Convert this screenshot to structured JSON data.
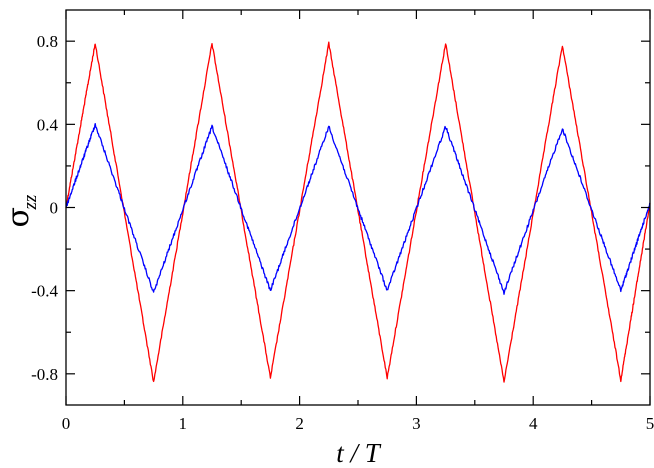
{
  "chart_data": {
    "type": "line",
    "xlabel": "t / T",
    "ylabel": {
      "symbol": "σ",
      "subscript": "zz"
    },
    "xlim": [
      0,
      5
    ],
    "ylim": [
      -0.95,
      0.95
    ],
    "x_ticks": [
      0,
      1,
      2,
      3,
      4,
      5
    ],
    "x_tick_labels": [
      "0",
      "1",
      "2",
      "3",
      "4",
      "5"
    ],
    "y_ticks": [
      -0.8,
      -0.4,
      0,
      0.4,
      0.8
    ],
    "y_tick_labels": [
      "-0.8",
      "-0.4",
      "0",
      "0.4",
      "0.8"
    ],
    "grid": false,
    "legend": "none",
    "series": [
      {
        "color": "#ff0000",
        "x": [
          0,
          0.25,
          0.75,
          1.25,
          1.75,
          2.25,
          2.75,
          3.25,
          3.75,
          4.25,
          4.75,
          5
        ],
        "values": [
          0,
          0.79,
          -0.84,
          0.79,
          -0.82,
          0.79,
          -0.82,
          0.79,
          -0.84,
          0.78,
          -0.83,
          0.02
        ]
      },
      {
        "color": "#0000ff",
        "x": [
          0,
          0.25,
          0.75,
          1.25,
          1.75,
          2.25,
          2.75,
          3.25,
          3.75,
          4.25,
          4.75,
          5
        ],
        "values": [
          0,
          0.4,
          -0.41,
          0.39,
          -0.4,
          0.39,
          -0.4,
          0.39,
          -0.41,
          0.38,
          -0.4,
          0.02
        ]
      }
    ]
  }
}
